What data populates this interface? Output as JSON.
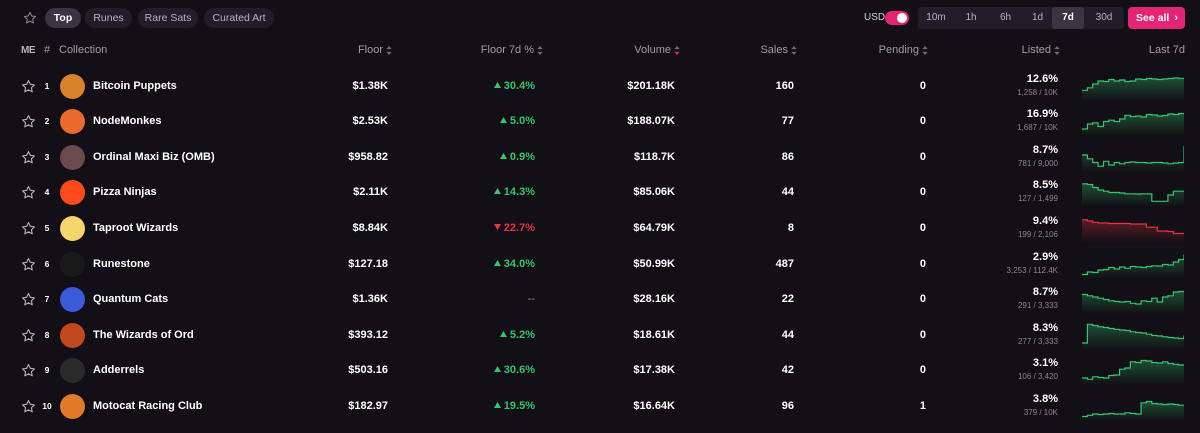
{
  "filters": [
    {
      "label": "Top",
      "active": true
    },
    {
      "label": "Runes",
      "active": false
    },
    {
      "label": "Rare Sats",
      "active": false
    },
    {
      "label": "Curated Art",
      "active": false
    }
  ],
  "currency": {
    "label": "USD",
    "enabled": true
  },
  "timeframes": [
    {
      "label": "10m",
      "active": false
    },
    {
      "label": "1h",
      "active": false
    },
    {
      "label": "6h",
      "active": false
    },
    {
      "label": "1d",
      "active": false
    },
    {
      "label": "7d",
      "active": true
    },
    {
      "label": "30d",
      "active": false
    }
  ],
  "see_all_label": "See all",
  "logo_text": "ME",
  "columns": {
    "rank": "#",
    "collection": "Collection",
    "floor": "Floor",
    "floor_change": "Floor 7d %",
    "volume": "Volume",
    "sales": "Sales",
    "pending": "Pending",
    "listed": "Listed",
    "last": "Last 7d"
  },
  "colors": {
    "accent": "#e42575",
    "up": "#36c46e",
    "down": "#e6353d",
    "background": "#120f16"
  },
  "rows": [
    {
      "rank": "1",
      "name": "Bitcoin Puppets",
      "floor": "$1.38K",
      "change": "30.4%",
      "dir": "up",
      "volume": "$201.18K",
      "sales": "160",
      "pending": "0",
      "listed_pct": "12.6%",
      "listed_sub": "1,258 / 10K",
      "avatar": "#d9822b",
      "spark": [
        0.35,
        0.45,
        0.6,
        0.72,
        0.7,
        0.78,
        0.72,
        0.76,
        0.7,
        0.72,
        0.8,
        0.78,
        0.82,
        0.8,
        0.78,
        0.8,
        0.82,
        0.84,
        0.83,
        0.82
      ]
    },
    {
      "rank": "2",
      "name": "NodeMonkes",
      "floor": "$2.53K",
      "change": "5.0%",
      "dir": "up",
      "volume": "$188.07K",
      "sales": "77",
      "pending": "0",
      "listed_pct": "16.9%",
      "listed_sub": "1,687 / 10K",
      "avatar": "#e86a2c",
      "spark": [
        0.2,
        0.4,
        0.45,
        0.3,
        0.5,
        0.55,
        0.5,
        0.6,
        0.75,
        0.7,
        0.72,
        0.68,
        0.78,
        0.76,
        0.72,
        0.74,
        0.8,
        0.78,
        0.82,
        0.84
      ]
    },
    {
      "rank": "3",
      "name": "Ordinal Maxi Biz (OMB)",
      "floor": "$958.82",
      "change": "0.9%",
      "dir": "up",
      "volume": "$118.7K",
      "sales": "86",
      "pending": "0",
      "listed_pct": "8.7%",
      "listed_sub": "781 / 9,000",
      "avatar": "#6a4a4a",
      "spark": [
        0.6,
        0.45,
        0.3,
        0.15,
        0.35,
        0.2,
        0.3,
        0.25,
        0.3,
        0.32,
        0.3,
        0.3,
        0.28,
        0.3,
        0.3,
        0.28,
        0.25,
        0.28,
        0.3,
        0.95
      ]
    },
    {
      "rank": "4",
      "name": "Pizza Ninjas",
      "floor": "$2.11K",
      "change": "14.3%",
      "dir": "up",
      "volume": "$85.06K",
      "sales": "44",
      "pending": "0",
      "listed_pct": "8.5%",
      "listed_sub": "127 / 1,499",
      "avatar": "#ff4a1c",
      "spark": [
        0.85,
        0.82,
        0.7,
        0.6,
        0.55,
        0.5,
        0.5,
        0.48,
        0.45,
        0.45,
        0.44,
        0.45,
        0.45,
        0.15,
        0.15,
        0.15,
        0.4,
        0.55,
        0.55,
        0.55
      ]
    },
    {
      "rank": "5",
      "name": "Taproot Wizards",
      "floor": "$8.84K",
      "change": "22.7%",
      "dir": "down",
      "volume": "$64.79K",
      "sales": "8",
      "pending": "0",
      "listed_pct": "9.4%",
      "listed_sub": "199 / 2,106",
      "avatar": "#f5d66b",
      "spark": [
        0.85,
        0.8,
        0.75,
        0.72,
        0.72,
        0.7,
        0.7,
        0.7,
        0.7,
        0.68,
        0.68,
        0.68,
        0.55,
        0.55,
        0.4,
        0.4,
        0.38,
        0.3,
        0.3,
        0.3
      ]
    },
    {
      "rank": "6",
      "name": "Runestone",
      "floor": "$127.18",
      "change": "34.0%",
      "dir": "up",
      "volume": "$50.99K",
      "sales": "487",
      "pending": "0",
      "listed_pct": "2.9%",
      "listed_sub": "3,253 / 112.4K",
      "avatar": "#1a1a1a",
      "spark": [
        0.1,
        0.2,
        0.18,
        0.28,
        0.3,
        0.38,
        0.32,
        0.4,
        0.35,
        0.42,
        0.4,
        0.38,
        0.42,
        0.45,
        0.44,
        0.5,
        0.48,
        0.6,
        0.7,
        0.9
      ]
    },
    {
      "rank": "7",
      "name": "Quantum Cats",
      "floor": "$1.36K",
      "change": "--",
      "dir": "flat",
      "volume": "$28.16K",
      "sales": "22",
      "pending": "0",
      "listed_pct": "8.7%",
      "listed_sub": "291 / 3,333",
      "avatar": "#3a5ad8",
      "spark": [
        0.7,
        0.65,
        0.6,
        0.55,
        0.5,
        0.45,
        0.42,
        0.4,
        0.42,
        0.35,
        0.32,
        0.45,
        0.42,
        0.55,
        0.4,
        0.6,
        0.65,
        0.8,
        0.82,
        0.85
      ]
    },
    {
      "rank": "8",
      "name": "The Wizards of Ord",
      "floor": "$393.12",
      "change": "5.2%",
      "dir": "up",
      "volume": "$18.61K",
      "sales": "44",
      "pending": "0",
      "listed_pct": "8.3%",
      "listed_sub": "277 / 3,333",
      "avatar": "#c2481d",
      "spark": [
        0.2,
        0.95,
        0.9,
        0.85,
        0.82,
        0.78,
        0.75,
        0.72,
        0.7,
        0.65,
        0.62,
        0.6,
        0.55,
        0.5,
        0.48,
        0.45,
        0.42,
        0.4,
        0.38,
        0.5
      ]
    },
    {
      "rank": "9",
      "name": "Adderrels",
      "floor": "$503.16",
      "change": "30.6%",
      "dir": "up",
      "volume": "$17.38K",
      "sales": "42",
      "pending": "0",
      "listed_pct": "3.1%",
      "listed_sub": "106 / 3,420",
      "avatar": "#2a2a2a",
      "spark": [
        0.2,
        0.15,
        0.25,
        0.22,
        0.2,
        0.3,
        0.32,
        0.55,
        0.6,
        0.85,
        0.82,
        0.9,
        0.88,
        0.82,
        0.8,
        0.85,
        0.78,
        0.75,
        0.72,
        0.7
      ]
    },
    {
      "rank": "10",
      "name": "Motocat Racing Club",
      "floor": "$182.97",
      "change": "19.5%",
      "dir": "up",
      "volume": "$16.64K",
      "sales": "96",
      "pending": "1",
      "listed_pct": "3.8%",
      "listed_sub": "379 / 10K",
      "avatar": "#e07a26",
      "spark": [
        0.1,
        0.15,
        0.2,
        0.18,
        0.2,
        0.22,
        0.2,
        0.2,
        0.25,
        0.22,
        0.2,
        0.65,
        0.7,
        0.62,
        0.6,
        0.58,
        0.6,
        0.58,
        0.55,
        0.55
      ]
    }
  ]
}
